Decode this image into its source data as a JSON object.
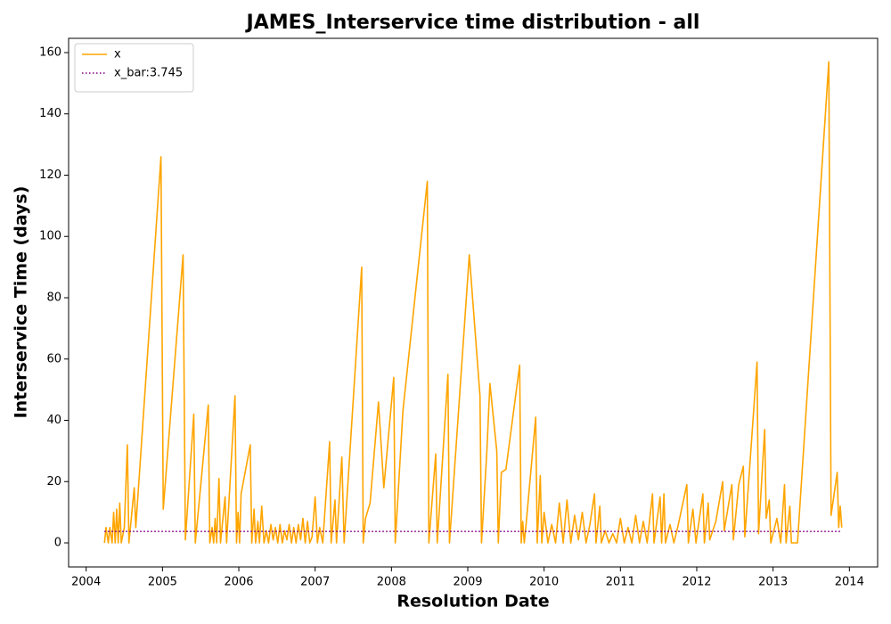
{
  "chart_data": {
    "type": "line",
    "title": "JAMES_Interservice time distribution - all",
    "x_label": "Resolution Date",
    "y_label": "Interservice Time (days)",
    "x": [
      2004.24,
      2004.26,
      2004.29,
      2004.31,
      2004.34,
      2004.36,
      2004.38,
      2004.4,
      2004.42,
      2004.44,
      2004.46,
      2004.5,
      2004.54,
      2004.56,
      2004.63,
      2004.65,
      2004.98,
      2005.01,
      2005.27,
      2005.3,
      2005.41,
      2005.43,
      2005.6,
      2005.62,
      2005.65,
      2005.67,
      2005.69,
      2005.71,
      2005.74,
      2005.76,
      2005.82,
      2005.84,
      2005.95,
      2005.97,
      2005.99,
      2006.01,
      2006.03,
      2006.15,
      2006.17,
      2006.2,
      2006.22,
      2006.25,
      2006.27,
      2006.3,
      2006.33,
      2006.36,
      2006.39,
      2006.42,
      2006.45,
      2006.48,
      2006.51,
      2006.54,
      2006.57,
      2006.6,
      2006.63,
      2006.66,
      2006.69,
      2006.72,
      2006.75,
      2006.78,
      2006.81,
      2006.84,
      2006.87,
      2006.9,
      2006.93,
      2006.96,
      2007.0,
      2007.03,
      2007.06,
      2007.1,
      2007.19,
      2007.21,
      2007.26,
      2007.28,
      2007.35,
      2007.38,
      2007.61,
      2007.63,
      2007.66,
      2007.72,
      2007.83,
      2007.9,
      2008.03,
      2008.05,
      2008.15,
      2008.47,
      2008.49,
      2008.58,
      2008.6,
      2008.74,
      2008.76,
      2009.02,
      2009.16,
      2009.18,
      2009.25,
      2009.29,
      2009.38,
      2009.4,
      2009.44,
      2009.5,
      2009.68,
      2009.7,
      2009.72,
      2009.74,
      2009.76,
      2009.89,
      2009.91,
      2009.95,
      2009.97,
      2010.0,
      2010.05,
      2010.1,
      2010.15,
      2010.2,
      2010.25,
      2010.3,
      2010.35,
      2010.4,
      2010.45,
      2010.5,
      2010.55,
      2010.6,
      2010.66,
      2010.68,
      2010.73,
      2010.75,
      2010.8,
      2010.85,
      2010.9,
      2010.95,
      2011.0,
      2011.05,
      2011.1,
      2011.15,
      2011.2,
      2011.25,
      2011.3,
      2011.35,
      2011.42,
      2011.44,
      2011.52,
      2011.54,
      2011.57,
      2011.59,
      2011.65,
      2011.7,
      2011.75,
      2011.87,
      2011.89,
      2011.95,
      2011.99,
      2012.08,
      2012.1,
      2012.15,
      2012.17,
      2012.25,
      2012.34,
      2012.36,
      2012.46,
      2012.48,
      2012.55,
      2012.61,
      2012.63,
      2012.79,
      2012.81,
      2012.89,
      2012.91,
      2012.95,
      2012.97,
      2013.05,
      2013.1,
      2013.15,
      2013.17,
      2013.22,
      2013.24,
      2013.32,
      2013.73,
      2013.76,
      2013.84,
      2013.86,
      2013.88,
      2013.9
    ],
    "series": [
      {
        "name": "x",
        "color": "#ffa500",
        "values": [
          0,
          5,
          0,
          5,
          0,
          10,
          0,
          11,
          0,
          13,
          0,
          5,
          32,
          0,
          18,
          5,
          126,
          11,
          94,
          1,
          42,
          0,
          45,
          0,
          5,
          0,
          8,
          0,
          21,
          0,
          15,
          0,
          48,
          0,
          10,
          0,
          16,
          32,
          0,
          11,
          0,
          7,
          0,
          12,
          0,
          4,
          0,
          6,
          1,
          5,
          0,
          6,
          0,
          4,
          1,
          6,
          0,
          5,
          0,
          6,
          1,
          8,
          0,
          7,
          0,
          2,
          15,
          0,
          5,
          0,
          33,
          0,
          14,
          0,
          28,
          0,
          90,
          0,
          8,
          13,
          46,
          18,
          54,
          0,
          43,
          118,
          0,
          29,
          0,
          55,
          0,
          94,
          48,
          0,
          30,
          52,
          30,
          0,
          23,
          24,
          58,
          0,
          7,
          0,
          5,
          41,
          0,
          22,
          0,
          10,
          0,
          6,
          0,
          13,
          0,
          14,
          0,
          9,
          1,
          10,
          0,
          6,
          16,
          0,
          12,
          0,
          4,
          0,
          3,
          0,
          8,
          0,
          5,
          0,
          9,
          0,
          7,
          0,
          16,
          0,
          15,
          0,
          16,
          0,
          6,
          0,
          5,
          19,
          0,
          11,
          0,
          16,
          0,
          13,
          1,
          7,
          20,
          4,
          19,
          1,
          19,
          25,
          2,
          59,
          3,
          37,
          8,
          14,
          0,
          8,
          0,
          19,
          0,
          12,
          0,
          0,
          157,
          9,
          23,
          5,
          12,
          5
        ]
      }
    ],
    "reference_line": {
      "name": "x_bar:3.745",
      "value": 3.745,
      "color": "#800080",
      "style": "dotted"
    },
    "xlim": [
      2003.77,
      2014.37
    ],
    "xticks": [
      2004,
      2005,
      2006,
      2007,
      2008,
      2009,
      2010,
      2011,
      2012,
      2013,
      2014
    ],
    "ylim": [
      -7.85,
      164.65
    ],
    "yticks": [
      0,
      20,
      40,
      60,
      80,
      100,
      120,
      140,
      160
    ],
    "grid": false,
    "legend": "upper left"
  }
}
